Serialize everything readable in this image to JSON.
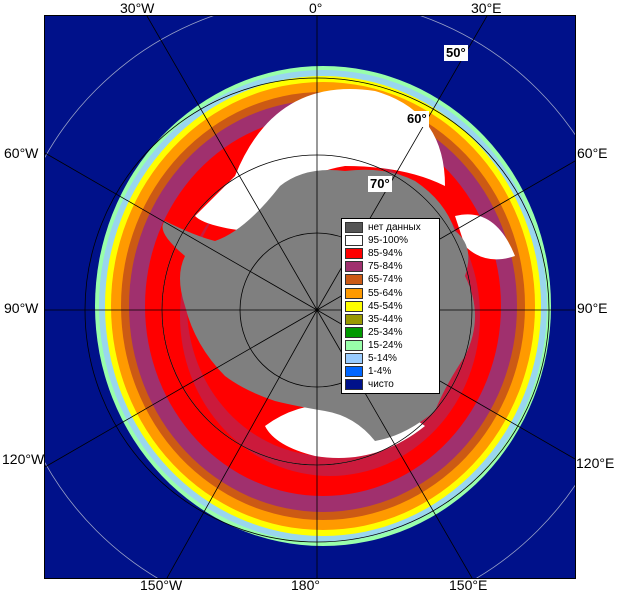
{
  "map": {
    "edge_labels": {
      "top": [
        "30°W",
        "0°",
        "30°E"
      ],
      "left": [
        "60°W",
        "90°W",
        "120°W"
      ],
      "right": [
        "60°E",
        "90°E",
        "120°E"
      ],
      "bottom": [
        "150°W",
        "180°",
        "150°E"
      ]
    },
    "latitude_labels": [
      "50°",
      "60°",
      "70°"
    ],
    "colors": {
      "open_water": "#00118a",
      "land": "#7f7f7f",
      "grid": "#000000"
    }
  },
  "legend": {
    "items": [
      {
        "label": "нет данных",
        "color": "#555555"
      },
      {
        "label": "95-100%",
        "color": "#ffffff"
      },
      {
        "label": "85-94%",
        "color": "#ff0000"
      },
      {
        "label": "75-84%",
        "color": "#a0306e"
      },
      {
        "label": "65-74%",
        "color": "#cc5a14"
      },
      {
        "label": "55-64%",
        "color": "#ff9a00"
      },
      {
        "label": "45-54%",
        "color": "#ffff00"
      },
      {
        "label": "35-44%",
        "color": "#999900"
      },
      {
        "label": "25-34%",
        "color": "#009900"
      },
      {
        "label": "15-24%",
        "color": "#99ffaa"
      },
      {
        "label": "5-14%",
        "color": "#99ccff"
      },
      {
        "label": "1-4%",
        "color": "#0066ff"
      },
      {
        "label": "чисто",
        "color": "#00118a"
      }
    ]
  }
}
